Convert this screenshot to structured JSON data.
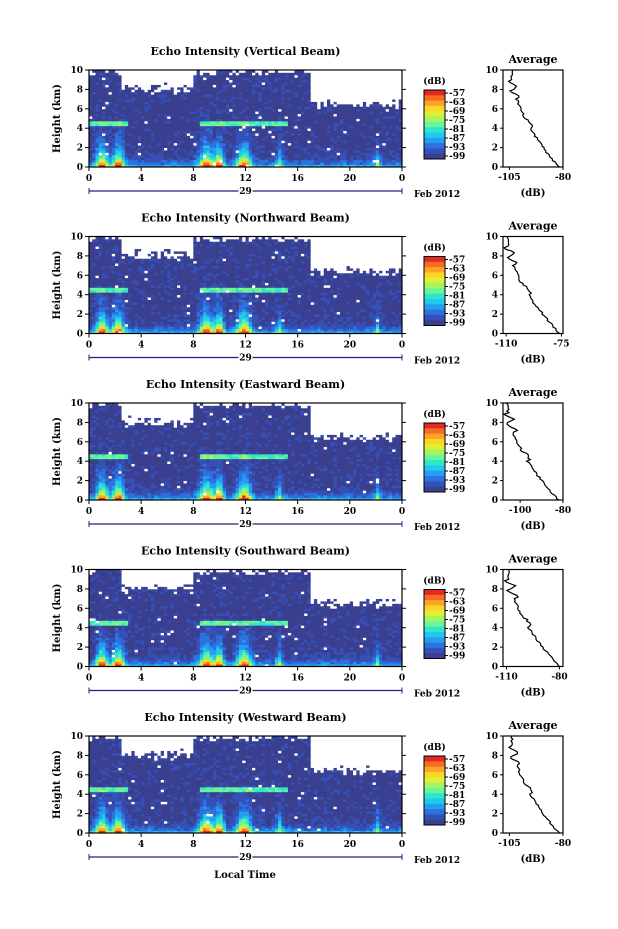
{
  "chart_data": {
    "type": "heatmap",
    "panels": [
      {
        "title": "Echo Intensity (Vertical Beam)",
        "avg_xlim": [
          -108,
          -80
        ],
        "avg_xticks": [
          -105,
          -80
        ],
        "avg_top": -104,
        "avg_bottom": -82
      },
      {
        "title": "Echo Intensity (Northward Beam)",
        "avg_xlim": [
          -112,
          -74
        ],
        "avg_xticks": [
          -110,
          -75
        ],
        "avg_top": -109,
        "avg_bottom": -76
      },
      {
        "title": "Echo Intensity (Eastward Beam)",
        "avg_xlim": [
          -108,
          -80
        ],
        "avg_xticks": [
          -100,
          -80
        ],
        "avg_top": -106,
        "avg_bottom": -82
      },
      {
        "title": "Echo Intensity (Southward Beam)",
        "avg_xlim": [
          -112,
          -78
        ],
        "avg_xticks": [
          -110,
          -80
        ],
        "avg_top": -109,
        "avg_bottom": -80
      },
      {
        "title": "Echo Intensity (Westward Beam)",
        "avg_xlim": [
          -108,
          -80
        ],
        "avg_xticks": [
          -105,
          -80
        ],
        "avg_top": -104,
        "avg_bottom": -82
      }
    ],
    "ylabel": "Height (km)",
    "ylim": [
      0,
      10
    ],
    "yticks": [
      "0",
      "2",
      "4",
      "6",
      "8",
      "10"
    ],
    "xlim": [
      0,
      24
    ],
    "xticks": [
      "0",
      "4",
      "8",
      "12",
      "16",
      "20",
      "0"
    ],
    "date_label": "29",
    "month_label": "Feb 2012",
    "xlabel": "Local Time",
    "colorbar_unit": "(dB)",
    "colorbar_ticks": [
      "-57",
      "-63",
      "-69",
      "-75",
      "-81",
      "-87",
      "-93",
      "-99"
    ],
    "average_title": "Average",
    "average_xlabel": "(dB)"
  }
}
